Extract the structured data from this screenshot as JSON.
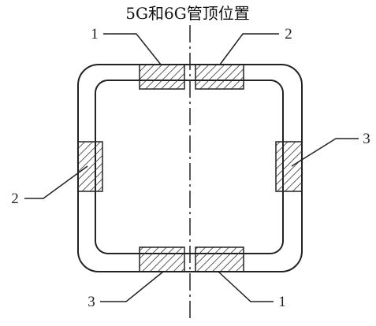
{
  "title": "5G和6G管顶位置",
  "labels": {
    "top_left": "1",
    "top_right": "2",
    "left": "2",
    "right": "3",
    "bottom_left": "3",
    "bottom_right": "1"
  }
}
